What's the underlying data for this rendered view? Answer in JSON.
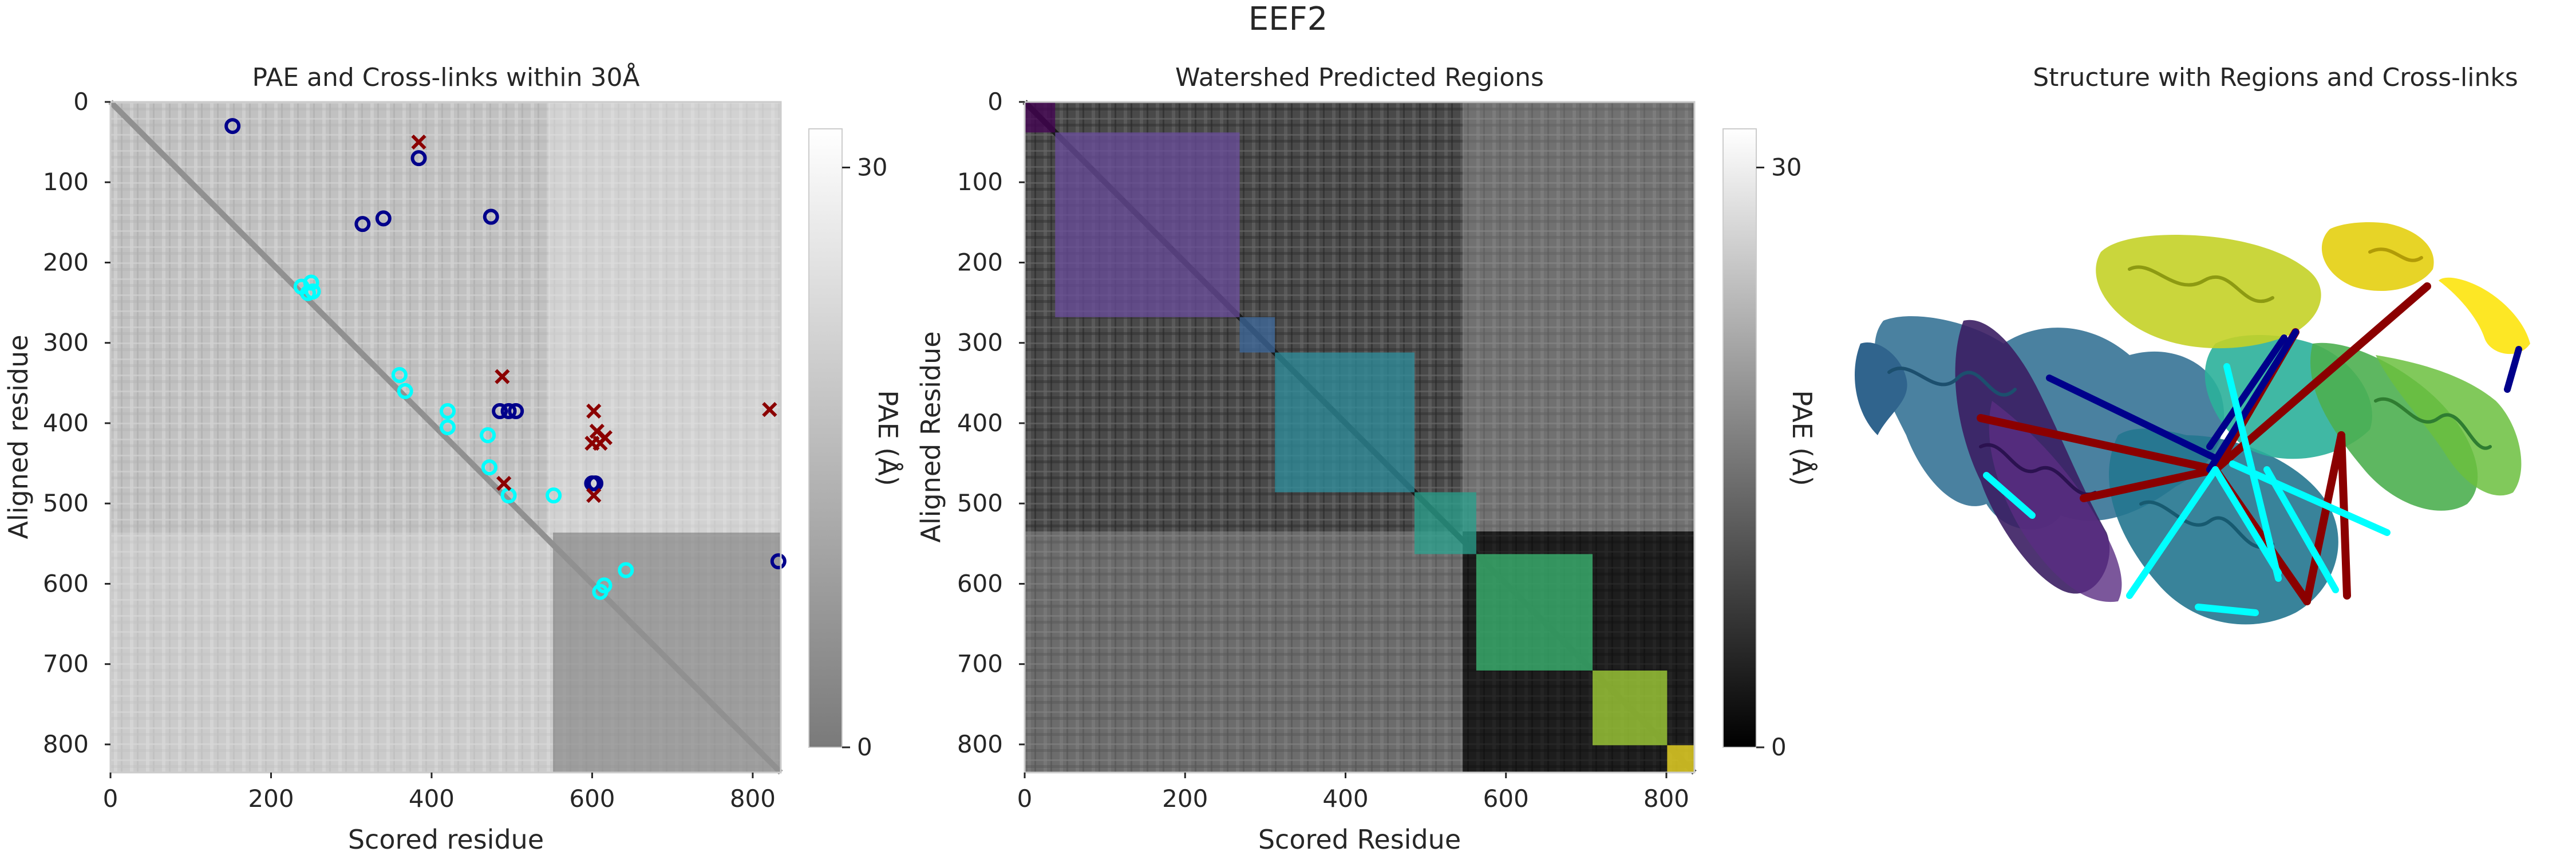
{
  "figure": {
    "suptitle": "EEF2"
  },
  "chart_data": [
    {
      "type": "heatmap",
      "title": "PAE and Cross-links within 30Å",
      "xlabel": "Scored residue",
      "ylabel": "Aligned residue",
      "xlim": [
        0,
        835
      ],
      "ylim": [
        835,
        0
      ],
      "xticks": [
        0,
        200,
        400,
        600,
        800
      ],
      "yticks": [
        0,
        100,
        200,
        300,
        400,
        500,
        600,
        700,
        800
      ],
      "colorbar": {
        "label": "PAE (Å)",
        "ticks": [
          0,
          30
        ],
        "range": [
          0,
          32
        ],
        "low_color": "#7a7a7a",
        "high_color": "#ffffff"
      },
      "grid": false,
      "series": [
        {
          "marker": "circle",
          "color": "#00008b",
          "points": [
            [
              152,
              30
            ],
            [
              384,
              70
            ],
            [
              314,
              152
            ],
            [
              340,
              145
            ],
            [
              474,
              143
            ],
            [
              485,
              385
            ],
            [
              496,
              385
            ],
            [
              505,
              385
            ],
            [
              600,
              475
            ],
            [
              604,
              475
            ],
            [
              832,
              572
            ]
          ]
        },
        {
          "marker": "circle",
          "color": "#00ffff",
          "points": [
            [
              238,
              230
            ],
            [
              246,
              238
            ],
            [
              250,
              225
            ],
            [
              252,
              236
            ],
            [
              360,
              340
            ],
            [
              367,
              360
            ],
            [
              420,
              385
            ],
            [
              420,
              405
            ],
            [
              470,
              415
            ],
            [
              472,
              455
            ],
            [
              496,
              490
            ],
            [
              552,
              490
            ],
            [
              610,
              610
            ],
            [
              615,
              602
            ],
            [
              642,
              583
            ]
          ]
        },
        {
          "marker": "x",
          "color": "#8b0000",
          "points": [
            [
              384,
              50
            ],
            [
              488,
              342
            ],
            [
              602,
              385
            ],
            [
              600,
              425
            ],
            [
              606,
              410
            ],
            [
              610,
              425
            ],
            [
              616,
              418
            ],
            [
              490,
              475
            ],
            [
              602,
              490
            ],
            [
              821,
              383
            ]
          ]
        }
      ]
    },
    {
      "type": "heatmap",
      "title": "Watershed Predicted Regions",
      "xlabel": "Scored Residue",
      "ylabel": "Aligned Residue",
      "xlim": [
        0,
        835
      ],
      "ylim": [
        835,
        0
      ],
      "xticks": [
        0,
        200,
        400,
        600,
        800
      ],
      "yticks": [
        0,
        100,
        200,
        300,
        400,
        500,
        600,
        700,
        800
      ],
      "colorbar": {
        "label": "PAE (Å)",
        "ticks": [
          0,
          30
        ],
        "range": [
          0,
          32
        ],
        "low_color": "#000000",
        "high_color": "#ffffff"
      },
      "grid": false,
      "regions": [
        {
          "start": 0,
          "end": 38,
          "color": "#440154"
        },
        {
          "start": 38,
          "end": 268,
          "color": "#6a4c9c"
        },
        {
          "start": 268,
          "end": 312,
          "color": "#3e6a9e"
        },
        {
          "start": 312,
          "end": 486,
          "color": "#2d8f9e"
        },
        {
          "start": 486,
          "end": 563,
          "color": "#2aa38f"
        },
        {
          "start": 563,
          "end": 708,
          "color": "#3cbc75"
        },
        {
          "start": 708,
          "end": 801,
          "color": "#a8d83a"
        },
        {
          "start": 801,
          "end": 835,
          "color": "#fde725"
        }
      ]
    }
  ],
  "structure_panel": {
    "title": "Structure with Regions and Cross-links"
  }
}
